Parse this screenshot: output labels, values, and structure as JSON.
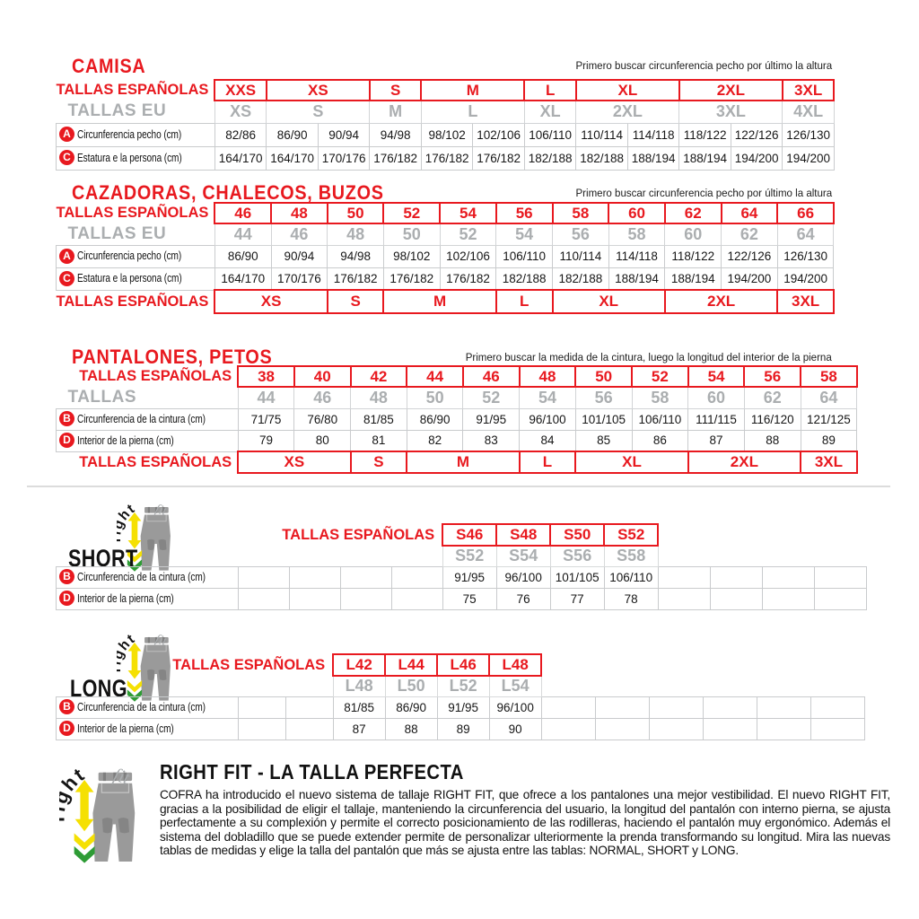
{
  "colors": {
    "red": "#e8191f",
    "gray_size": "#abaeb0"
  },
  "logo": {
    "right": "right",
    "fit": "fit"
  },
  "camisa": {
    "title": "CAMISA",
    "note": "Primero buscar circunferencia pecho por último la altura",
    "es_label": "TALLAS ESPAÑOLAS",
    "eu_label": "TALLAS EU",
    "es_sizes": [
      {
        "l": "XXS",
        "s": 1
      },
      {
        "l": "XS",
        "s": 2
      },
      {
        "l": "S",
        "s": 1
      },
      {
        "l": "M",
        "s": 2
      },
      {
        "l": "L",
        "s": 1
      },
      {
        "l": "XL",
        "s": 2
      },
      {
        "l": "2XL",
        "s": 2
      },
      {
        "l": "3XL",
        "s": 1
      }
    ],
    "eu_sizes": [
      {
        "l": "XS",
        "s": 1
      },
      {
        "l": "S",
        "s": 2
      },
      {
        "l": "M",
        "s": 1
      },
      {
        "l": "L",
        "s": 2
      },
      {
        "l": "XL",
        "s": 1
      },
      {
        "l": "2XL",
        "s": 2
      },
      {
        "l": "3XL",
        "s": 2
      },
      {
        "l": "4XL",
        "s": 1
      }
    ],
    "rows": [
      {
        "b": "A",
        "label": "Circunferencia pecho (cm)",
        "v": [
          "82/86",
          "86/90",
          "90/94",
          "94/98",
          "98/102",
          "102/106",
          "106/110",
          "110/114",
          "114/118",
          "118/122",
          "122/126",
          "126/130"
        ]
      },
      {
        "b": "C",
        "label": "Estatura e la persona (cm)",
        "v": [
          "164/170",
          "164/170",
          "170/176",
          "176/182",
          "176/182",
          "176/182",
          "182/188",
          "182/188",
          "188/194",
          "188/194",
          "194/200",
          "194/200"
        ]
      }
    ]
  },
  "cazadoras": {
    "title": "CAZADORAS, CHALECOS, BUZOS",
    "note": "Primero buscar circunferencia pecho por último la altura",
    "es_label": "TALLAS ESPAÑOLAS",
    "eu_label": "TALLAS EU",
    "es_sizes": [
      {
        "l": "46",
        "s": 1
      },
      {
        "l": "48",
        "s": 1
      },
      {
        "l": "50",
        "s": 1
      },
      {
        "l": "52",
        "s": 1
      },
      {
        "l": "54",
        "s": 1
      },
      {
        "l": "56",
        "s": 1
      },
      {
        "l": "58",
        "s": 1
      },
      {
        "l": "60",
        "s": 1
      },
      {
        "l": "62",
        "s": 1
      },
      {
        "l": "64",
        "s": 1
      },
      {
        "l": "66",
        "s": 1
      }
    ],
    "eu_sizes": [
      {
        "l": "44",
        "s": 1
      },
      {
        "l": "46",
        "s": 1
      },
      {
        "l": "48",
        "s": 1
      },
      {
        "l": "50",
        "s": 1
      },
      {
        "l": "52",
        "s": 1
      },
      {
        "l": "54",
        "s": 1
      },
      {
        "l": "56",
        "s": 1
      },
      {
        "l": "58",
        "s": 1
      },
      {
        "l": "60",
        "s": 1
      },
      {
        "l": "62",
        "s": 1
      },
      {
        "l": "64",
        "s": 1
      }
    ],
    "rows": [
      {
        "b": "A",
        "label": "Circunferencia pecho (cm)",
        "v": [
          "86/90",
          "90/94",
          "94/98",
          "98/102",
          "102/106",
          "106/110",
          "110/114",
          "114/118",
          "118/122",
          "122/126",
          "126/130"
        ]
      },
      {
        "b": "C",
        "label": "Estatura e la persona (cm)",
        "v": [
          "164/170",
          "170/176",
          "176/182",
          "176/182",
          "176/182",
          "182/188",
          "182/188",
          "188/194",
          "188/194",
          "194/200",
          "194/200"
        ]
      }
    ],
    "bottom_sizes": [
      {
        "l": "XS",
        "s": 2
      },
      {
        "l": "S",
        "s": 1
      },
      {
        "l": "M",
        "s": 2
      },
      {
        "l": "L",
        "s": 1
      },
      {
        "l": "XL",
        "s": 2
      },
      {
        "l": "2XL",
        "s": 2
      },
      {
        "l": "3XL",
        "s": 1
      }
    ]
  },
  "pantalones": {
    "title": "PANTALONES, PETOS",
    "note": "Primero buscar la medida de la cintura, luego la longitud del interior de la pierna",
    "es_label": "TALLAS ESPAÑOLAS",
    "eu_label": "TALLAS",
    "es_sizes": [
      {
        "l": "38",
        "s": 1
      },
      {
        "l": "40",
        "s": 1
      },
      {
        "l": "42",
        "s": 1
      },
      {
        "l": "44",
        "s": 1
      },
      {
        "l": "46",
        "s": 1
      },
      {
        "l": "48",
        "s": 1
      },
      {
        "l": "50",
        "s": 1
      },
      {
        "l": "52",
        "s": 1
      },
      {
        "l": "54",
        "s": 1
      },
      {
        "l": "56",
        "s": 1
      },
      {
        "l": "58",
        "s": 1
      }
    ],
    "eu_sizes": [
      {
        "l": "44",
        "s": 1
      },
      {
        "l": "46",
        "s": 1
      },
      {
        "l": "48",
        "s": 1
      },
      {
        "l": "50",
        "s": 1
      },
      {
        "l": "52",
        "s": 1
      },
      {
        "l": "54",
        "s": 1
      },
      {
        "l": "56",
        "s": 1
      },
      {
        "l": "58",
        "s": 1
      },
      {
        "l": "60",
        "s": 1
      },
      {
        "l": "62",
        "s": 1
      },
      {
        "l": "64",
        "s": 1
      }
    ],
    "rows": [
      {
        "b": "B",
        "label": "Circunferencia de la cintura (cm)",
        "v": [
          "71/75",
          "76/80",
          "81/85",
          "86/90",
          "91/95",
          "96/100",
          "101/105",
          "106/110",
          "111/115",
          "116/120",
          "121/125"
        ]
      },
      {
        "b": "D",
        "label": "Interior de la pierna (cm)",
        "v": [
          "79",
          "80",
          "81",
          "82",
          "83",
          "84",
          "85",
          "86",
          "87",
          "88",
          "89"
        ]
      }
    ],
    "bottom_sizes": [
      {
        "l": "XS",
        "s": 2
      },
      {
        "l": "S",
        "s": 1
      },
      {
        "l": "M",
        "s": 2
      },
      {
        "l": "L",
        "s": 1
      },
      {
        "l": "XL",
        "s": 2
      },
      {
        "l": "2XL",
        "s": 2
      },
      {
        "l": "3XL",
        "s": 1
      }
    ]
  },
  "short": {
    "name": "SHORT",
    "es_label": "TALLAS ESPAÑOLAS",
    "sizes_red": [
      "S46",
      "S48",
      "S50",
      "S52"
    ],
    "sizes_gray": [
      "S52",
      "S54",
      "S56",
      "S58"
    ],
    "rows": [
      {
        "b": "B",
        "label": "Circunferencia de la cintura (cm)",
        "v": [
          "91/95",
          "96/100",
          "101/105",
          "106/110"
        ]
      },
      {
        "b": "D",
        "label": "Interior de la pierna (cm)",
        "v": [
          "75",
          "76",
          "77",
          "78"
        ]
      }
    ]
  },
  "long": {
    "name": "LONG",
    "es_label": "TALLAS ESPAÑOLAS",
    "sizes_red": [
      "L42",
      "L44",
      "L46",
      "L48"
    ],
    "sizes_gray": [
      "L48",
      "L50",
      "L52",
      "L54"
    ],
    "rows": [
      {
        "b": "B",
        "label": "Circunferencia de la cintura (cm)",
        "v": [
          "81/85",
          "86/90",
          "91/95",
          "96/100"
        ]
      },
      {
        "b": "D",
        "label": "Interior de la pierna (cm)",
        "v": [
          "87",
          "88",
          "89",
          "90"
        ]
      }
    ]
  },
  "rightfit": {
    "title": "RIGHT FIT - LA TALLA PERFECTA",
    "paragraph": "COFRA ha introducido el nuevo sistema de tallaje RIGHT FIT, que ofrece a los pantalones una mejor vestibilidad. El nuevo RIGHT FIT, gracias a la posibilidad de eligir el tallaje, manteniendo la circunferencia del usuario, la longitud del pantalón con interno pierna, se ajusta perfectamente a su complexión y permite el correcto posicionamiento de las rodilleras, haciendo el pantalón muy ergonómico. Además el sistema del dobladillo que se puede extender permite de personalizar ulteriormente la prenda transformando su longitud. Mira las nuevas tablas de medidas y elige la talla del pantalón que más se ajusta entre las tablas: NORMAL, SHORT y LONG."
  }
}
